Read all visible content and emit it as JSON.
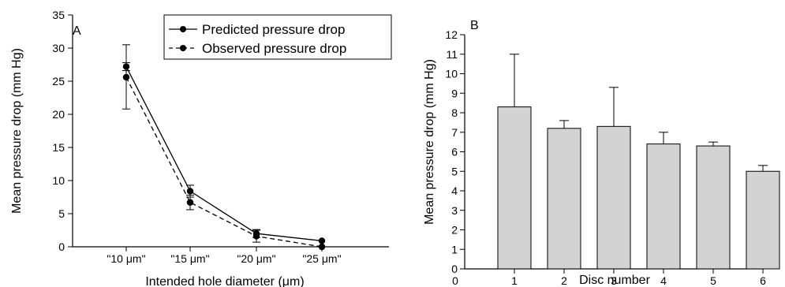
{
  "chart_data": [
    {
      "type": "line",
      "panel": "A",
      "xlabel": "Intended hole diameter (μm)",
      "ylabel": "Mean pressure drop (mm Hg)",
      "categories": [
        "\"10 μm\"",
        "\"15 μm\"",
        "\"20 μm\"",
        "\"25 μm\""
      ],
      "ylim": [
        0,
        35
      ],
      "yticks": [
        0,
        5,
        10,
        15,
        20,
        25,
        30,
        35
      ],
      "legend_position": "top-right",
      "series": [
        {
          "name": "Predicted pressure drop",
          "line_style": "solid",
          "values": [
            27.2,
            8.4,
            2.0,
            0.9
          ],
          "err_low": [
            0.6,
            0.9,
            0.6,
            0
          ],
          "err_high": [
            0.6,
            0.9,
            0.6,
            0
          ]
        },
        {
          "name": "Observed pressure drop",
          "line_style": "dashed",
          "values": [
            25.6,
            6.7,
            1.6,
            0.0
          ],
          "err_low": [
            4.8,
            1.1,
            0.9,
            0
          ],
          "err_high": [
            4.9,
            1.1,
            0.9,
            0
          ]
        }
      ]
    },
    {
      "type": "bar",
      "panel": "B",
      "xlabel": "Disc number",
      "ylabel": "Mean pressure drop (mm Hg)",
      "categories": [
        "1",
        "2",
        "3",
        "4",
        "5",
        "6"
      ],
      "values": [
        8.3,
        7.2,
        7.3,
        6.4,
        6.3,
        5.0
      ],
      "errors": [
        2.7,
        0.4,
        2.0,
        0.6,
        0.2,
        0.3
      ],
      "ylim": [
        0,
        12
      ],
      "yticks": [
        0,
        1,
        2,
        3,
        4,
        5,
        6,
        7,
        8,
        9,
        10,
        11,
        12
      ],
      "xticks": [
        "0",
        "1",
        "2",
        "3",
        "4",
        "5",
        "6"
      ],
      "bar_color": "#d3d3d3"
    }
  ]
}
